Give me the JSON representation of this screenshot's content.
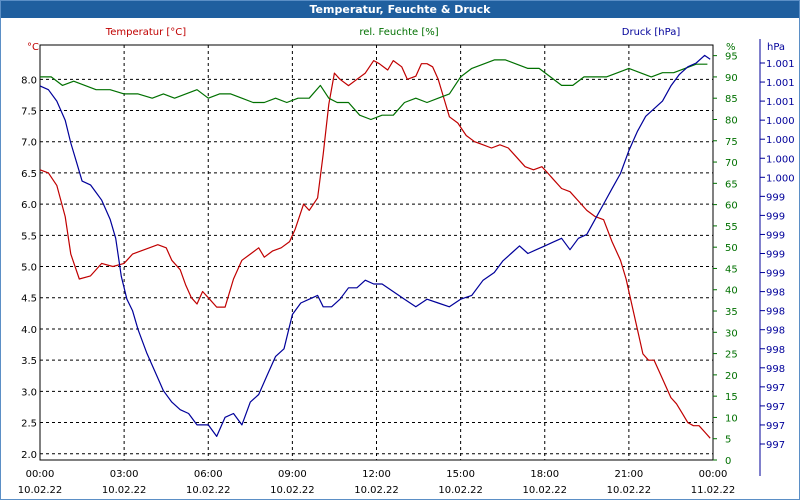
{
  "window": {
    "title": "Temperatur, Feuchte & Druck"
  },
  "chart_data": {
    "type": "line",
    "title": "Temperatur, Feuchte & Druck",
    "grid": true,
    "x_ticks": [
      {
        "time": "00:00",
        "date": "10.02.22"
      },
      {
        "time": "03:00",
        "date": "10.02.22"
      },
      {
        "time": "06:00",
        "date": "10.02.22"
      },
      {
        "time": "09:00",
        "date": "10.02.22"
      },
      {
        "time": "12:00",
        "date": "10.02.22"
      },
      {
        "time": "15:00",
        "date": "10.02.22"
      },
      {
        "time": "18:00",
        "date": "10.02.22"
      },
      {
        "time": "21:00",
        "date": "10.02.22"
      },
      {
        "time": "00:00",
        "date": "11.02.22"
      }
    ],
    "x_range_hours": [
      0,
      24
    ],
    "axes": {
      "temperature": {
        "label": "Temperatur [°C]",
        "unit": "°C",
        "color": "#c00000",
        "ylim": [
          1.9,
          8.55
        ],
        "ticks": [
          "2.0",
          "2.5",
          "3.0",
          "3.5",
          "4.0",
          "4.5",
          "5.0",
          "5.5",
          "6.0",
          "6.5",
          "7.0",
          "7.5",
          "8.0"
        ]
      },
      "humidity": {
        "label": "rel. Feuchte [%]",
        "unit": "%",
        "color": "#007000",
        "ylim": [
          0,
          97.5
        ],
        "ticks": [
          "0",
          "5",
          "10",
          "15",
          "20",
          "25",
          "30",
          "35",
          "40",
          "45",
          "50",
          "55",
          "60",
          "65",
          "70",
          "75",
          "80",
          "85",
          "90",
          "95"
        ]
      },
      "pressure": {
        "label": "Druck [hPa]",
        "unit": "hPa",
        "color": "#00009a",
        "ticks": [
          "997",
          "997",
          "997",
          "997",
          "998",
          "998",
          "998",
          "998",
          "998",
          "999",
          "999",
          "999",
          "999",
          "999",
          "1.000",
          "1.000",
          "1.000",
          "1.000",
          "1.001",
          "1.001",
          "1.001"
        ]
      }
    },
    "series": [
      {
        "name": "Temperatur [°C]",
        "axis": "temperature",
        "color": "#c00000",
        "x": [
          0,
          0.3,
          0.6,
          0.9,
          1.1,
          1.4,
          1.8,
          2.2,
          2.6,
          3.0,
          3.3,
          3.6,
          3.9,
          4.2,
          4.5,
          4.7,
          5.0,
          5.2,
          5.4,
          5.6,
          5.8,
          6.0,
          6.3,
          6.6,
          6.9,
          7.2,
          7.5,
          7.8,
          8.0,
          8.3,
          8.6,
          8.9,
          9.1,
          9.4,
          9.6,
          9.9,
          10.1,
          10.3,
          10.5,
          10.7,
          11.0,
          11.3,
          11.6,
          11.9,
          12.1,
          12.4,
          12.6,
          12.9,
          13.1,
          13.4,
          13.6,
          13.8,
          14.0,
          14.2,
          14.4,
          14.6,
          14.9,
          15.2,
          15.5,
          15.8,
          16.1,
          16.4,
          16.7,
          17.0,
          17.3,
          17.6,
          17.9,
          18.1,
          18.3,
          18.6,
          18.9,
          19.2,
          19.5,
          19.8,
          20.1,
          20.4,
          20.7,
          20.9,
          21.1,
          21.3,
          21.5,
          21.7,
          21.9,
          22.1,
          22.3,
          22.5,
          22.7,
          22.9,
          23.1,
          23.3,
          23.5,
          23.7,
          23.9
        ],
        "values": [
          6.55,
          6.5,
          6.3,
          5.8,
          5.2,
          4.8,
          4.85,
          5.05,
          5.0,
          5.05,
          5.2,
          5.25,
          5.3,
          5.35,
          5.3,
          5.1,
          4.95,
          4.7,
          4.5,
          4.4,
          4.6,
          4.5,
          4.35,
          4.35,
          4.8,
          5.1,
          5.2,
          5.3,
          5.15,
          5.25,
          5.3,
          5.4,
          5.6,
          6.0,
          5.9,
          6.1,
          6.8,
          7.6,
          8.1,
          8.0,
          7.9,
          8.0,
          8.1,
          8.3,
          8.25,
          8.15,
          8.3,
          8.2,
          8.0,
          8.05,
          8.25,
          8.25,
          8.2,
          8.0,
          7.7,
          7.4,
          7.3,
          7.1,
          7.0,
          6.95,
          6.9,
          6.95,
          6.9,
          6.75,
          6.6,
          6.55,
          6.6,
          6.5,
          6.4,
          6.25,
          6.2,
          6.05,
          5.9,
          5.8,
          5.75,
          5.4,
          5.1,
          4.8,
          4.4,
          4.0,
          3.6,
          3.5,
          3.5,
          3.3,
          3.1,
          2.9,
          2.8,
          2.65,
          2.5,
          2.45,
          2.45,
          2.35,
          2.25
        ]
      },
      {
        "name": "rel. Feuchte [%]",
        "axis": "humidity",
        "color": "#007000",
        "x": [
          0,
          0.4,
          0.8,
          1.2,
          1.6,
          2.0,
          2.5,
          3.0,
          3.5,
          4.0,
          4.4,
          4.8,
          5.2,
          5.6,
          6.0,
          6.4,
          6.8,
          7.2,
          7.6,
          8.0,
          8.4,
          8.8,
          9.2,
          9.6,
          10.0,
          10.3,
          10.6,
          11.0,
          11.4,
          11.8,
          12.2,
          12.6,
          13.0,
          13.4,
          13.8,
          14.2,
          14.6,
          15.0,
          15.4,
          15.8,
          16.2,
          16.6,
          17.0,
          17.4,
          17.8,
          18.2,
          18.6,
          19.0,
          19.4,
          19.8,
          20.2,
          20.6,
          21.0,
          21.4,
          21.8,
          22.2,
          22.6,
          23.0,
          23.4,
          23.8
        ],
        "values": [
          90,
          90,
          88,
          89,
          88,
          87,
          87,
          86,
          86,
          85,
          86,
          85,
          86,
          87,
          85,
          86,
          86,
          85,
          84,
          84,
          85,
          84,
          85,
          85,
          88,
          85,
          84,
          84,
          81,
          80,
          81,
          81,
          84,
          85,
          84,
          85,
          86,
          90,
          92,
          93,
          94,
          94,
          93,
          92,
          92,
          90,
          88,
          88,
          90,
          90,
          90,
          91,
          92,
          91,
          90,
          91,
          91,
          92,
          93,
          93
        ]
      },
      {
        "name": "Druck [hPa]",
        "axis": "pressure",
        "color": "#00009a",
        "note": "plotted on the pressure axis tick index scale (0 = lowest printed tick, 20 = highest)",
        "x": [
          0,
          0.3,
          0.6,
          0.9,
          1.1,
          1.3,
          1.5,
          1.8,
          2.0,
          2.2,
          2.5,
          2.7,
          2.9,
          3.1,
          3.3,
          3.5,
          3.8,
          4.1,
          4.4,
          4.7,
          5.0,
          5.3,
          5.6,
          6.0,
          6.3,
          6.6,
          6.9,
          7.2,
          7.5,
          7.8,
          8.1,
          8.4,
          8.7,
          9.0,
          9.3,
          9.6,
          9.9,
          10.1,
          10.4,
          10.7,
          11.0,
          11.3,
          11.6,
          11.9,
          12.2,
          12.6,
          13.0,
          13.4,
          13.8,
          14.2,
          14.6,
          15.0,
          15.4,
          15.8,
          16.2,
          16.5,
          16.8,
          17.1,
          17.4,
          17.7,
          18.0,
          18.3,
          18.6,
          18.9,
          19.2,
          19.5,
          19.8,
          20.1,
          20.4,
          20.7,
          21.0,
          21.3,
          21.6,
          21.9,
          22.2,
          22.5,
          22.8,
          23.1,
          23.4,
          23.7,
          23.9
        ],
        "values": [
          18.8,
          18.6,
          18,
          17,
          15.8,
          14.8,
          13.8,
          13.6,
          13.2,
          12.8,
          11.8,
          10.8,
          8.8,
          7.6,
          7.0,
          6.0,
          4.8,
          3.8,
          2.8,
          2.2,
          1.8,
          1.6,
          1.0,
          1.0,
          0.4,
          1.4,
          1.6,
          1.0,
          2.2,
          2.6,
          3.6,
          4.6,
          5.0,
          6.8,
          7.4,
          7.6,
          7.8,
          7.2,
          7.2,
          7.6,
          8.2,
          8.2,
          8.6,
          8.4,
          8.4,
          8.0,
          7.6,
          7.2,
          7.6,
          7.4,
          7.2,
          7.6,
          7.8,
          8.6,
          9.0,
          9.6,
          10.0,
          10.4,
          10.0,
          10.2,
          10.4,
          10.6,
          10.8,
          10.2,
          10.8,
          11.0,
          11.8,
          12.6,
          13.4,
          14.2,
          15.4,
          16.4,
          17.2,
          17.6,
          18.0,
          18.8,
          19.4,
          19.8,
          20.0,
          20.4,
          20.2
        ]
      }
    ]
  }
}
